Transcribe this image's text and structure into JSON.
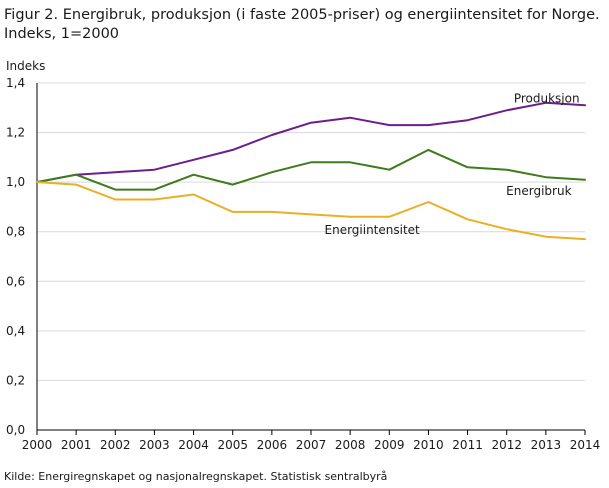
{
  "figure": {
    "title_line1": "Figur 2. Energibruk, produksjon (i faste 2005-priser) og energiintensitet for Norge.",
    "title_line2": "Indeks, 1=2000",
    "source": "Kilde: Energiregnskapet og nasjonalregnskapet. Statistisk sentralbyrå"
  },
  "chart_data": {
    "type": "line",
    "title": "Figur 2. Energibruk, produksjon (i faste 2005-priser) og energiintensitet for Norge. Indeks, 1=2000",
    "xlabel": "",
    "ylabel": "Indeks",
    "x": [
      "2000",
      "2001",
      "2002",
      "2003",
      "2004",
      "2005",
      "2006",
      "2007",
      "2008",
      "2009",
      "2010",
      "2011",
      "2012",
      "2013",
      "2014"
    ],
    "y_ticks": [
      "0,0",
      "0,2",
      "0,4",
      "0,6",
      "0,8",
      "1,0",
      "1,2",
      "1,4"
    ],
    "ylim": [
      0,
      1.4
    ],
    "grid": true,
    "legend": "inline labels",
    "series": [
      {
        "name": "Produksjon",
        "color": "#6b1e8c",
        "values": [
          1.0,
          1.03,
          1.04,
          1.05,
          1.09,
          1.13,
          1.19,
          1.24,
          1.26,
          1.23,
          1.23,
          1.25,
          1.29,
          1.32,
          1.31
        ]
      },
      {
        "name": "Energibruk",
        "color": "#3d7b1b",
        "values": [
          1.0,
          1.03,
          0.97,
          0.97,
          1.03,
          0.99,
          1.04,
          1.08,
          1.08,
          1.05,
          1.13,
          1.06,
          1.05,
          1.02,
          1.01
        ]
      },
      {
        "name": "Energiintensitet",
        "color": "#e8b025",
        "values": [
          1.0,
          0.99,
          0.93,
          0.93,
          0.95,
          0.88,
          0.88,
          0.87,
          0.86,
          0.86,
          0.92,
          0.85,
          0.81,
          0.78,
          0.77
        ]
      }
    ]
  }
}
